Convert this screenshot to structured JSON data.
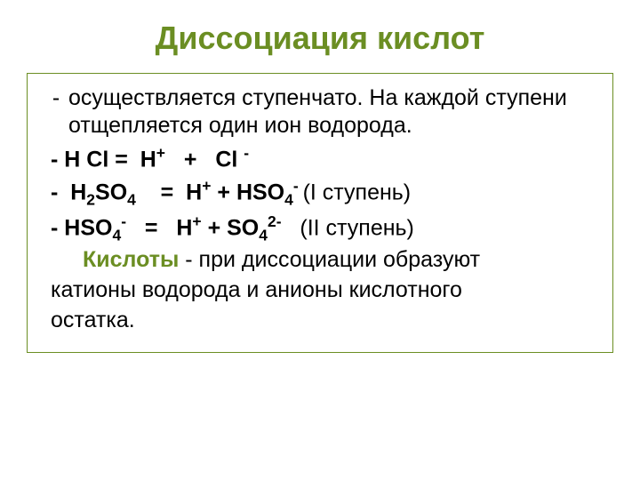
{
  "colors": {
    "title": "#6b8e23",
    "body_text": "#000000",
    "box_border": "#6b8e23",
    "keyword": "#6b8e23",
    "background": "#ffffff"
  },
  "title": "Диссоциация кислот",
  "intro": {
    "bullet": "-",
    "text": "осуществляется ступенчато. На каждой ступени отщепляется один ион водорода."
  },
  "eq1": {
    "prefix": "- ",
    "lhs1": "H Cl",
    "eq": " = ",
    "sp1": " ",
    "rhs1_base": "H",
    "rhs1_sup": "+",
    "plus": "   +   ",
    "rhs2_base": "Cl ",
    "rhs2_sup": "-"
  },
  "eq2": {
    "prefix": "-  ",
    "lhs_base": "H",
    "lhs_sub": "2",
    "lhs_tail": "SO",
    "lhs_sub2": "4",
    "sp": "   ",
    "eq": " =  ",
    "rhs1_base": "H",
    "rhs1_sup": "+",
    "plus": " + ",
    "rhs2_base": "HSO",
    "rhs2_sub": "4",
    "rhs2_sup": "- ",
    "note": "(I ступень)"
  },
  "eq3": {
    "prefix": "- ",
    "lhs_base": "HSO",
    "lhs_sub": "4",
    "lhs_sup": "-",
    "sp": "  ",
    "eq": " =   ",
    "rhs1_base": "H",
    "rhs1_sup": "+",
    "plus": " + ",
    "rhs2_base": "SO",
    "rhs2_sub": "4",
    "rhs2_sup": "2-",
    "sp2": "   ",
    "note": "(II ступень)"
  },
  "definition": {
    "keyword": "Кислоты",
    "line1_tail": " - при диссоциации образуют",
    "line2": "катионы водорода и анионы кислотного",
    "line3": "остатка."
  },
  "typography": {
    "title_fontsize": 36,
    "body_fontsize": 25,
    "font_family": "Arial"
  }
}
